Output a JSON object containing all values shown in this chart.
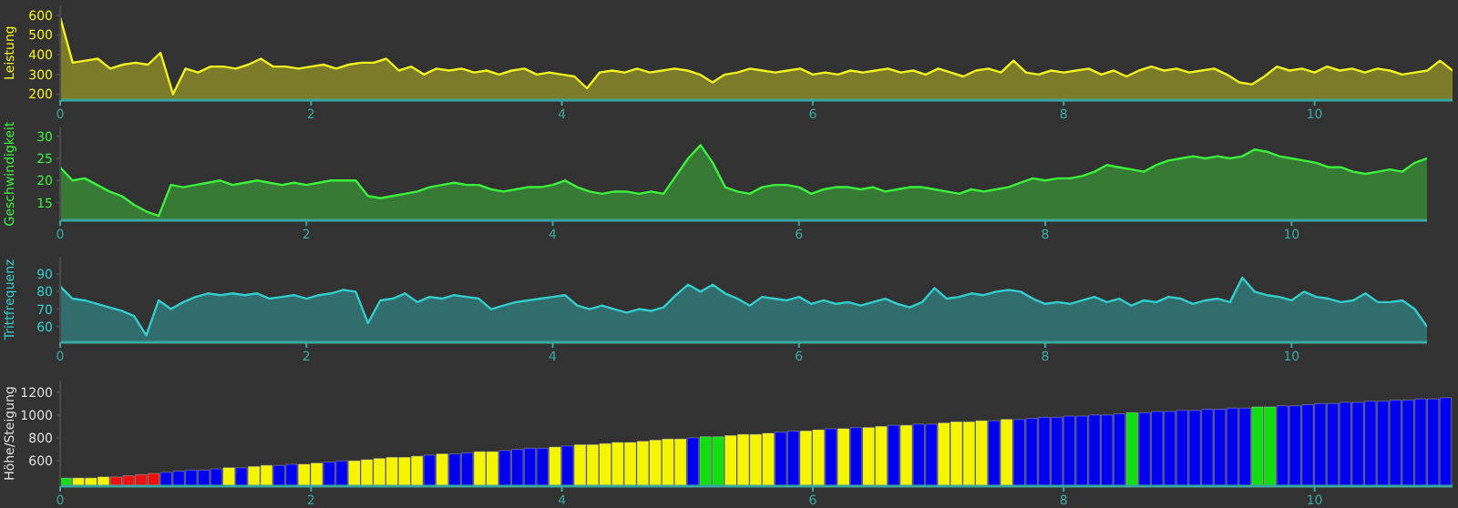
{
  "chart_data": [
    {
      "type": "area",
      "ylabel": "Leistung",
      "color": "#f2f21e",
      "xlim": [
        0,
        11.1
      ],
      "ylim": [
        170,
        650
      ],
      "xticks": [
        0,
        2,
        4,
        6,
        8,
        10
      ],
      "yticks": [
        200,
        300,
        400,
        500,
        600
      ],
      "x": [
        0,
        0.1,
        0.2,
        0.3,
        0.4,
        0.5,
        0.6,
        0.7,
        0.8,
        0.9,
        1,
        1.1,
        1.2,
        1.3,
        1.4,
        1.5,
        1.6,
        1.7,
        1.8,
        1.9,
        2,
        2.1,
        2.2,
        2.3,
        2.4,
        2.5,
        2.6,
        2.7,
        2.8,
        2.9,
        3,
        3.1,
        3.2,
        3.3,
        3.4,
        3.5,
        3.6,
        3.7,
        3.8,
        3.9,
        4,
        4.1,
        4.2,
        4.3,
        4.4,
        4.5,
        4.6,
        4.7,
        4.8,
        4.9,
        5,
        5.1,
        5.2,
        5.3,
        5.4,
        5.5,
        5.6,
        5.7,
        5.8,
        5.9,
        6,
        6.1,
        6.2,
        6.3,
        6.4,
        6.5,
        6.6,
        6.7,
        6.8,
        6.9,
        7,
        7.1,
        7.2,
        7.3,
        7.4,
        7.5,
        7.6,
        7.7,
        7.8,
        7.9,
        8,
        8.1,
        8.2,
        8.3,
        8.4,
        8.5,
        8.6,
        8.7,
        8.8,
        8.9,
        9,
        9.1,
        9.2,
        9.3,
        9.4,
        9.5,
        9.6,
        9.7,
        9.8,
        9.9,
        10,
        10.1,
        10.2,
        10.3,
        10.4,
        10.5,
        10.6,
        10.7,
        10.8,
        10.9,
        11,
        11.1
      ],
      "values": [
        590,
        360,
        370,
        380,
        330,
        350,
        360,
        350,
        410,
        200,
        330,
        310,
        340,
        340,
        330,
        350,
        380,
        340,
        340,
        330,
        340,
        350,
        330,
        350,
        360,
        360,
        380,
        320,
        340,
        300,
        330,
        320,
        330,
        310,
        320,
        300,
        320,
        330,
        300,
        310,
        300,
        290,
        230,
        310,
        320,
        310,
        330,
        310,
        320,
        330,
        320,
        300,
        260,
        300,
        310,
        330,
        320,
        310,
        320,
        330,
        300,
        310,
        300,
        320,
        310,
        320,
        330,
        310,
        320,
        300,
        330,
        310,
        290,
        320,
        330,
        310,
        370,
        310,
        300,
        320,
        310,
        320,
        330,
        300,
        320,
        290,
        320,
        340,
        320,
        330,
        310,
        320,
        330,
        300,
        260,
        250,
        290,
        340,
        320,
        330,
        310,
        340,
        320,
        330,
        310,
        330,
        320,
        300,
        310,
        320,
        370,
        320
      ]
    },
    {
      "type": "area",
      "ylabel": "Geschwindigkeit",
      "color": "#3cf03c",
      "xlim": [
        0,
        11.1
      ],
      "ylim": [
        11,
        32
      ],
      "xticks": [
        0,
        2,
        4,
        6,
        8,
        10
      ],
      "yticks": [
        15,
        20,
        25,
        30
      ],
      "x": [
        0,
        0.1,
        0.2,
        0.3,
        0.4,
        0.5,
        0.6,
        0.7,
        0.8,
        0.9,
        1,
        1.1,
        1.2,
        1.3,
        1.4,
        1.5,
        1.6,
        1.7,
        1.8,
        1.9,
        2,
        2.1,
        2.2,
        2.3,
        2.4,
        2.5,
        2.6,
        2.7,
        2.8,
        2.9,
        3,
        3.1,
        3.2,
        3.3,
        3.4,
        3.5,
        3.6,
        3.7,
        3.8,
        3.9,
        4,
        4.1,
        4.2,
        4.3,
        4.4,
        4.5,
        4.6,
        4.7,
        4.8,
        4.9,
        5,
        5.1,
        5.2,
        5.3,
        5.4,
        5.5,
        5.6,
        5.7,
        5.8,
        5.9,
        6,
        6.1,
        6.2,
        6.3,
        6.4,
        6.5,
        6.6,
        6.7,
        6.8,
        6.9,
        7,
        7.1,
        7.2,
        7.3,
        7.4,
        7.5,
        7.6,
        7.7,
        7.8,
        7.9,
        8,
        8.1,
        8.2,
        8.3,
        8.4,
        8.5,
        8.6,
        8.7,
        8.8,
        8.9,
        9,
        9.1,
        9.2,
        9.3,
        9.4,
        9.5,
        9.6,
        9.7,
        9.8,
        9.9,
        10,
        10.1,
        10.2,
        10.3,
        10.4,
        10.5,
        10.6,
        10.7,
        10.8,
        10.9,
        11,
        11.1
      ],
      "values": [
        23,
        20,
        20.5,
        19,
        17.5,
        16.5,
        14.5,
        13,
        12,
        19,
        18.5,
        19,
        19.5,
        20,
        19,
        19.5,
        20,
        19.5,
        19,
        19.5,
        19,
        19.5,
        20,
        20,
        20,
        16.5,
        16,
        16.5,
        17,
        17.5,
        18.5,
        19,
        19.5,
        19,
        19,
        18,
        17.5,
        18,
        18.5,
        18.5,
        19,
        20,
        18.5,
        17.5,
        17,
        17.5,
        17.5,
        17,
        17.5,
        17,
        21,
        25,
        28,
        24,
        18.5,
        17.5,
        17,
        18.5,
        19,
        19,
        18.5,
        17,
        18,
        18.5,
        18.5,
        18,
        18.5,
        17.5,
        18,
        18.5,
        18.5,
        18,
        17.5,
        17,
        18,
        17.5,
        18,
        18.5,
        19.5,
        20.5,
        20,
        20.5,
        20.5,
        21,
        22,
        23.5,
        23,
        22.5,
        22,
        23.5,
        24.5,
        25,
        25.5,
        25,
        25.5,
        25,
        25.5,
        27,
        26.5,
        25.5,
        25,
        24.5,
        24,
        23,
        23,
        22,
        21.5,
        22,
        22.5,
        22,
        24,
        25
      ]
    },
    {
      "type": "area",
      "ylabel": "Trittfrequenz",
      "color": "#33cccc",
      "xlim": [
        0,
        11.1
      ],
      "ylim": [
        51,
        100
      ],
      "xticks": [
        0,
        2,
        4,
        6,
        8,
        10
      ],
      "yticks": [
        60,
        70,
        80,
        90
      ],
      "x": [
        0,
        0.1,
        0.2,
        0.3,
        0.4,
        0.5,
        0.6,
        0.7,
        0.8,
        0.9,
        1,
        1.1,
        1.2,
        1.3,
        1.4,
        1.5,
        1.6,
        1.7,
        1.8,
        1.9,
        2,
        2.1,
        2.2,
        2.3,
        2.4,
        2.5,
        2.6,
        2.7,
        2.8,
        2.9,
        3,
        3.1,
        3.2,
        3.3,
        3.4,
        3.5,
        3.6,
        3.7,
        3.8,
        3.9,
        4,
        4.1,
        4.2,
        4.3,
        4.4,
        4.5,
        4.6,
        4.7,
        4.8,
        4.9,
        5,
        5.1,
        5.2,
        5.3,
        5.4,
        5.5,
        5.6,
        5.7,
        5.8,
        5.9,
        6,
        6.1,
        6.2,
        6.3,
        6.4,
        6.5,
        6.6,
        6.7,
        6.8,
        6.9,
        7,
        7.1,
        7.2,
        7.3,
        7.4,
        7.5,
        7.6,
        7.7,
        7.8,
        7.9,
        8,
        8.1,
        8.2,
        8.3,
        8.4,
        8.5,
        8.6,
        8.7,
        8.8,
        8.9,
        9,
        9.1,
        9.2,
        9.3,
        9.4,
        9.5,
        9.6,
        9.7,
        9.8,
        9.9,
        10,
        10.1,
        10.2,
        10.3,
        10.4,
        10.5,
        10.6,
        10.7,
        10.8,
        10.9,
        11,
        11.1
      ],
      "values": [
        83,
        76,
        75,
        73,
        71,
        69,
        66,
        55,
        75,
        70,
        74,
        77,
        79,
        78,
        79,
        78,
        79,
        76,
        77,
        78,
        76,
        78,
        79,
        81,
        80,
        62,
        75,
        76,
        79,
        74,
        77,
        76,
        78,
        77,
        76,
        70,
        72,
        74,
        75,
        76,
        77,
        78,
        72,
        70,
        72,
        70,
        68,
        70,
        69,
        71,
        78,
        84,
        80,
        84,
        79,
        76,
        72,
        77,
        76,
        75,
        77,
        73,
        75,
        73,
        74,
        72,
        74,
        76,
        73,
        71,
        74,
        82,
        76,
        77,
        79,
        78,
        80,
        81,
        80,
        76,
        73,
        74,
        73,
        75,
        77,
        74,
        76,
        72,
        75,
        74,
        77,
        76,
        73,
        75,
        76,
        74,
        88,
        80,
        78,
        77,
        75,
        80,
        77,
        76,
        74,
        75,
        79,
        74,
        74,
        75,
        70,
        60
      ]
    },
    {
      "type": "histogram",
      "ylabel": "Höhe/Steigung",
      "xlim": [
        0,
        11.1
      ],
      "ylim": [
        380,
        1300
      ],
      "xticks": [
        0,
        2,
        4,
        6,
        8,
        10
      ],
      "yticks": [
        600,
        800,
        1000,
        1200
      ],
      "bins": [
        0,
        0.1,
        0.2,
        0.3,
        0.4,
        0.5,
        0.6,
        0.7,
        0.8,
        0.9,
        1,
        1.1,
        1.2,
        1.3,
        1.4,
        1.5,
        1.6,
        1.7,
        1.8,
        1.9,
        2,
        2.1,
        2.2,
        2.3,
        2.4,
        2.5,
        2.6,
        2.7,
        2.8,
        2.9,
        3,
        3.1,
        3.2,
        3.3,
        3.4,
        3.5,
        3.6,
        3.7,
        3.8,
        3.9,
        4,
        4.1,
        4.2,
        4.3,
        4.4,
        4.5,
        4.6,
        4.7,
        4.8,
        4.9,
        5,
        5.1,
        5.2,
        5.3,
        5.4,
        5.5,
        5.6,
        5.7,
        5.8,
        5.9,
        6,
        6.1,
        6.2,
        6.3,
        6.4,
        6.5,
        6.6,
        6.7,
        6.8,
        6.9,
        7,
        7.1,
        7.2,
        7.3,
        7.4,
        7.5,
        7.6,
        7.7,
        7.8,
        7.9,
        8,
        8.1,
        8.2,
        8.3,
        8.4,
        8.5,
        8.6,
        8.7,
        8.8,
        8.9,
        9,
        9.1,
        9.2,
        9.3,
        9.4,
        9.5,
        9.6,
        9.7,
        9.8,
        9.9,
        10,
        10.1,
        10.2,
        10.3,
        10.4,
        10.5,
        10.6,
        10.7,
        10.8,
        10.9,
        11,
        11.1
      ],
      "values": [
        450,
        450,
        450,
        460,
        460,
        470,
        480,
        490,
        500,
        510,
        520,
        520,
        530,
        540,
        540,
        550,
        560,
        560,
        570,
        570,
        580,
        590,
        600,
        600,
        610,
        620,
        630,
        630,
        640,
        650,
        660,
        660,
        670,
        680,
        680,
        690,
        700,
        710,
        710,
        720,
        730,
        740,
        740,
        750,
        760,
        760,
        770,
        780,
        790,
        790,
        800,
        810,
        810,
        820,
        830,
        830,
        840,
        850,
        860,
        860,
        870,
        880,
        880,
        890,
        890,
        900,
        910,
        910,
        920,
        920,
        930,
        940,
        940,
        950,
        950,
        960,
        960,
        970,
        980,
        980,
        990,
        990,
        1000,
        1000,
        1010,
        1020,
        1020,
        1030,
        1030,
        1040,
        1040,
        1050,
        1050,
        1060,
        1060,
        1070,
        1070,
        1080,
        1080,
        1090,
        1100,
        1100,
        1110,
        1110,
        1120,
        1120,
        1130,
        1130,
        1140,
        1140,
        1150
      ],
      "colors": [
        "#11dd11",
        "#f5f500",
        "#f5f500",
        "#f5f500",
        "#ee1111",
        "#ee1111",
        "#ee1111",
        "#ee1111",
        "#0000ee",
        "#0000ee",
        "#0000ee",
        "#0000ee",
        "#0000ee",
        "#f5f500",
        "#0000ee",
        "#f5f500",
        "#f5f500",
        "#0000ee",
        "#0000ee",
        "#f5f500",
        "#f5f500",
        "#0000ee",
        "#0000ee",
        "#f5f500",
        "#f5f500",
        "#f5f500",
        "#f5f500",
        "#f5f500",
        "#f5f500",
        "#0000ee",
        "#f5f500",
        "#0000ee",
        "#0000ee",
        "#f5f500",
        "#f5f500",
        "#0000ee",
        "#0000ee",
        "#0000ee",
        "#0000ee",
        "#f5f500",
        "#0000ee",
        "#f5f500",
        "#f5f500",
        "#f5f500",
        "#f5f500",
        "#f5f500",
        "#f5f500",
        "#f5f500",
        "#f5f500",
        "#f5f500",
        "#0000ee",
        "#11dd11",
        "#11dd11",
        "#f5f500",
        "#f5f500",
        "#f5f500",
        "#f5f500",
        "#0000ee",
        "#0000ee",
        "#f5f500",
        "#f5f500",
        "#0000ee",
        "#f5f500",
        "#0000ee",
        "#f5f500",
        "#f5f500",
        "#0000ee",
        "#f5f500",
        "#0000ee",
        "#0000ee",
        "#f5f500",
        "#f5f500",
        "#f5f500",
        "#f5f500",
        "#0000ee",
        "#f5f500",
        "#0000ee",
        "#0000ee",
        "#0000ee",
        "#0000ee",
        "#0000ee",
        "#0000ee",
        "#0000ee",
        "#0000ee",
        "#0000ee",
        "#11dd11",
        "#0000ee",
        "#0000ee",
        "#0000ee",
        "#0000ee",
        "#0000ee",
        "#0000ee",
        "#0000ee",
        "#0000ee",
        "#0000ee",
        "#11dd11",
        "#11dd11",
        "#0000ee",
        "#0000ee",
        "#0000ee",
        "#0000ee",
        "#0000ee",
        "#0000ee",
        "#0000ee",
        "#0000ee",
        "#0000ee",
        "#0000ee",
        "#0000ee",
        "#0000ee",
        "#0000ee",
        "#0000ee"
      ]
    }
  ]
}
